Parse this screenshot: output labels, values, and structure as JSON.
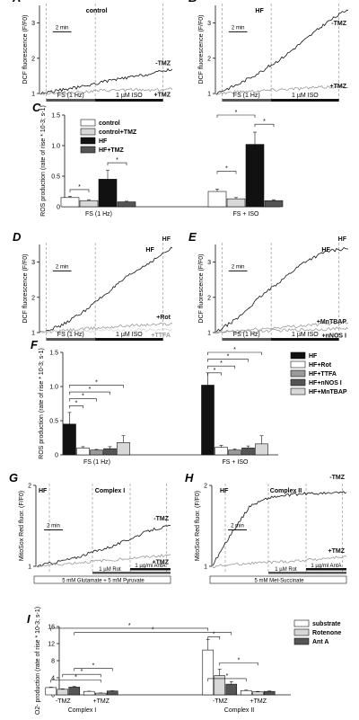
{
  "colors": {
    "black": "#111111",
    "light_gray": "#d8d8d8",
    "mid_gray": "#9a9a9a",
    "dark_gray": "#555555",
    "white": "#ffffff"
  },
  "chart_data": [
    {
      "panel": "A",
      "type": "line",
      "title": "control",
      "ylabel": "DCF fluorescence (F/F0)",
      "ylim": [
        1,
        3.5
      ],
      "yticks": [
        "1",
        "2",
        "3"
      ],
      "scale_bar": "2 min",
      "protocol_labels": [
        "FS (1 Hz)",
        "1 µM ISO"
      ],
      "series": [
        {
          "name": "-TMZ",
          "x_min": [
            0,
            2,
            4,
            6,
            8,
            10,
            12
          ],
          "values": [
            1.0,
            1.1,
            1.2,
            1.35,
            1.45,
            1.55,
            1.7
          ]
        },
        {
          "name": "+TMZ",
          "x_min": [
            0,
            2,
            4,
            6,
            8,
            10,
            12
          ],
          "values": [
            1.0,
            1.02,
            1.05,
            1.08,
            1.1,
            1.1,
            1.12
          ]
        }
      ]
    },
    {
      "panel": "B",
      "type": "line",
      "title": "HF",
      "ylabel": "DCF fluorescence (F/F0)",
      "ylim": [
        1,
        3.5
      ],
      "yticks": [
        "1",
        "2",
        "3"
      ],
      "scale_bar": "2 min",
      "protocol_labels": [
        "FS (1 Hz)",
        "1 µM ISO"
      ],
      "series": [
        {
          "name": "-TMZ",
          "x_min": [
            0,
            2,
            4,
            6,
            8,
            10,
            12
          ],
          "values": [
            1.0,
            1.25,
            1.6,
            2.0,
            2.5,
            3.0,
            3.4
          ]
        },
        {
          "name": "+TMZ",
          "x_min": [
            0,
            2,
            4,
            6,
            8,
            10,
            12
          ],
          "values": [
            1.0,
            1.05,
            1.08,
            1.12,
            1.15,
            1.18,
            1.2
          ]
        }
      ]
    },
    {
      "panel": "C",
      "type": "bar",
      "ylabel": "ROS production (rate of rise * 10-3; s-1)",
      "ylim": [
        0,
        1.5
      ],
      "yticks": [
        "0",
        "0.5",
        "1.0",
        "1.5"
      ],
      "categories": [
        "FS (1 Hz)",
        "FS + ISO"
      ],
      "significance": "*",
      "series": [
        {
          "name": "control",
          "values": [
            0.15,
            0.25
          ],
          "errors": [
            0.02,
            0.04
          ]
        },
        {
          "name": "control+TMZ",
          "values": [
            0.1,
            0.13
          ],
          "errors": [
            0.015,
            0.02
          ]
        },
        {
          "name": "HF",
          "values": [
            0.45,
            1.02
          ],
          "errors": [
            0.15,
            0.2
          ]
        },
        {
          "name": "HF+TMZ",
          "values": [
            0.08,
            0.1
          ],
          "errors": [
            0.01,
            0.015
          ]
        }
      ]
    },
    {
      "panel": "D",
      "type": "line",
      "title": "HF",
      "ylabel": "DCF fluorescence (F/F0)",
      "ylim": [
        1,
        3.5
      ],
      "yticks": [
        "1",
        "2",
        "3"
      ],
      "scale_bar": "2 min",
      "protocol_labels": [
        "FS (1 Hz)",
        "1 µM ISO"
      ],
      "series": [
        {
          "name": "HF",
          "x_min": [
            0,
            2,
            4,
            6,
            8,
            10,
            12
          ],
          "values": [
            1.0,
            1.2,
            1.6,
            2.1,
            2.6,
            3.0,
            3.4
          ]
        },
        {
          "name": "+Rot",
          "x_min": [
            0,
            2,
            4,
            6,
            8,
            10,
            12
          ],
          "values": [
            1.0,
            1.05,
            1.1,
            1.15,
            1.2,
            1.22,
            1.25
          ]
        },
        {
          "name": "+TTFA",
          "x_min": [
            0,
            2,
            4,
            6,
            8,
            10,
            12
          ],
          "values": [
            1.0,
            1.02,
            1.04,
            1.05,
            1.06,
            1.07,
            1.08
          ]
        }
      ]
    },
    {
      "panel": "E",
      "type": "line",
      "title": "HF",
      "ylabel": "DCF fluorescence (F/F0)",
      "ylim": [
        1,
        3.5
      ],
      "yticks": [
        "1",
        "2",
        "3"
      ],
      "scale_bar": "2 min",
      "protocol_labels": [
        "FS (1 Hz)",
        "1 µM ISO"
      ],
      "series": [
        {
          "name": "HF",
          "x_min": [
            0,
            2,
            4,
            6,
            8,
            10,
            12
          ],
          "values": [
            1.0,
            1.4,
            2.0,
            2.5,
            3.0,
            3.3,
            3.4
          ]
        },
        {
          "name": "+MnTBAP",
          "x_min": [
            0,
            2,
            4,
            6,
            8,
            10,
            12
          ],
          "values": [
            1.0,
            1.05,
            1.1,
            1.15,
            1.2,
            1.25,
            1.3
          ]
        },
        {
          "name": "+nNOS I",
          "x_min": [
            0,
            2,
            4,
            6,
            8,
            10,
            12
          ],
          "values": [
            1.0,
            1.02,
            1.04,
            1.06,
            1.08,
            1.1,
            1.12
          ]
        }
      ]
    },
    {
      "panel": "F",
      "type": "bar",
      "ylabel": "ROS production (rate of rise * 10-3; s-1)",
      "ylim": [
        0,
        1.5
      ],
      "yticks": [
        "0",
        "0.5",
        "1.0",
        "1.5"
      ],
      "categories": [
        "FS (1 Hz)",
        "FS + ISO"
      ],
      "significance": "*",
      "series": [
        {
          "name": "HF",
          "values": [
            0.45,
            1.02
          ],
          "errors": [
            0.17,
            0.18
          ]
        },
        {
          "name": "HF+Rot",
          "values": [
            0.1,
            0.11
          ],
          "errors": [
            0.02,
            0.03
          ]
        },
        {
          "name": "HF+TTFA",
          "values": [
            0.07,
            0.07
          ],
          "errors": [
            0.01,
            0.015
          ]
        },
        {
          "name": "HF+nNOS I",
          "values": [
            0.09,
            0.1
          ],
          "errors": [
            0.03,
            0.03
          ]
        },
        {
          "name": "HF+MnTBAP",
          "values": [
            0.18,
            0.16
          ],
          "errors": [
            0.1,
            0.12
          ]
        }
      ]
    },
    {
      "panel": "G",
      "type": "line",
      "title": "HF",
      "subtitle": "Complex I",
      "ylabel": "MitoSox Red fluor. (F/F0)",
      "ylim": [
        1,
        2
      ],
      "yticks": [
        "1",
        "2"
      ],
      "scale_bar": "2 min",
      "protocol_labels": [
        "1 µM Rot",
        "1 µg/ml AntA",
        "5 mM Glutamate + 5 mM Pyruvate"
      ],
      "series": [
        {
          "name": "-TMZ",
          "x_min": [
            0,
            2,
            4,
            6,
            8,
            10,
            12,
            14
          ],
          "values": [
            1.0,
            1.05,
            1.1,
            1.18,
            1.25,
            1.35,
            1.45,
            1.5
          ]
        },
        {
          "name": "+TMZ",
          "x_min": [
            0,
            2,
            4,
            6,
            8,
            10,
            12,
            14
          ],
          "values": [
            1.0,
            1.02,
            1.04,
            1.06,
            1.08,
            1.1,
            1.12,
            1.14
          ]
        }
      ]
    },
    {
      "panel": "H",
      "type": "line",
      "title": "HF",
      "subtitle": "Complex II",
      "ylabel": "MitoSox Red fluor. (F/F0)",
      "ylim": [
        1,
        2
      ],
      "yticks": [
        "1",
        "2"
      ],
      "scale_bar": "2 min",
      "protocol_labels": [
        "1 µM Rot",
        "1 µg/ml AntA",
        "5 mM Met-Succinate"
      ],
      "series": [
        {
          "name": "-TMZ",
          "x_min": [
            0,
            2,
            4,
            6,
            8,
            10,
            12,
            14
          ],
          "values": [
            1.0,
            1.4,
            1.75,
            1.85,
            1.88,
            1.9,
            1.9,
            1.92
          ]
        },
        {
          "name": "+TMZ",
          "x_min": [
            0,
            2,
            4,
            6,
            8,
            10,
            12,
            14
          ],
          "values": [
            1.0,
            1.02,
            1.04,
            1.05,
            1.06,
            1.08,
            1.1,
            1.12
          ]
        }
      ]
    },
    {
      "panel": "I",
      "type": "bar",
      "ylabel": "O2- production (rate of rise * 10-3; s-1)",
      "ylim": [
        0,
        16
      ],
      "yticks": [
        "0",
        "4",
        "8",
        "12",
        "16"
      ],
      "groups": [
        {
          "name": "Complex I",
          "categories": [
            "-TMZ",
            "+TMZ"
          ]
        },
        {
          "name": "Complex II",
          "categories": [
            "-TMZ",
            "+TMZ"
          ]
        }
      ],
      "categories": [
        "Complex I -TMZ",
        "Complex I +TMZ",
        "Complex II -TMZ",
        "Complex II +TMZ"
      ],
      "significance": "*",
      "series": [
        {
          "name": "substrate",
          "values": [
            1.7,
            0.8,
            10.5,
            1.0
          ],
          "errors": [
            0.1,
            0.05,
            2.5,
            0.1
          ]
        },
        {
          "name": "Rotenone",
          "values": [
            1.3,
            0.4,
            4.5,
            0.7
          ],
          "errors": [
            0.1,
            0.05,
            1.5,
            0.1
          ]
        },
        {
          "name": "Ant A",
          "values": [
            1.8,
            0.9,
            2.5,
            0.8
          ],
          "errors": [
            0.15,
            0.05,
            0.6,
            0.1
          ]
        }
      ]
    }
  ]
}
